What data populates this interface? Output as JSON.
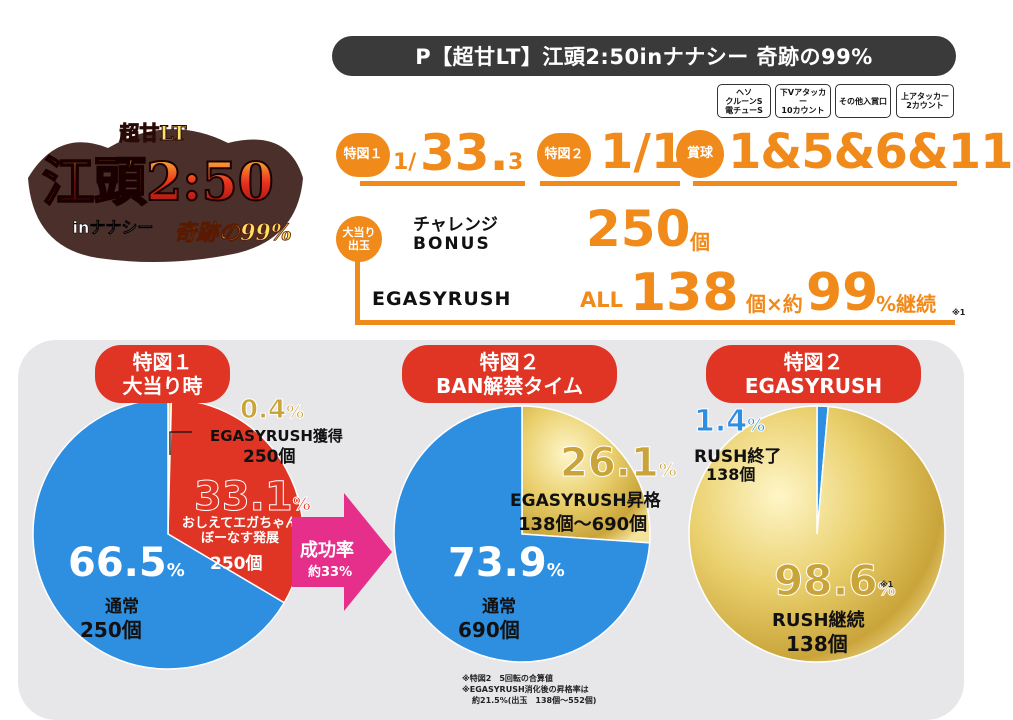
{
  "title": "P【超甘LT】江頭2:50inナナシー 奇跡の99%",
  "logo": {
    "line1": "超甘LT",
    "line2": "江頭2:50",
    "line3": "inナナシー",
    "line4": "奇跡の99%"
  },
  "prize_boxes": [
    "ヘソ\nクルーンS\n電チューS",
    "下Vアタッカー\n10カウント",
    "その他入賞口",
    "上アタッカー\n2カウント"
  ],
  "specs": {
    "tokuzu1_badge": "特図１",
    "tokuzu1_prefix": "1/",
    "tokuzu1_value": "33.",
    "tokuzu1_suffix": "3",
    "tokuzu2_badge": "特図２",
    "tokuzu2_value": "1/1",
    "shokyu_badge": "賞球",
    "shokyu_value": "1&5&6&11",
    "payout_badge": "大当り\n出玉",
    "bonus_label1": "チャレンジ",
    "bonus_label2": "BONUS",
    "bonus_value": "250",
    "bonus_unit": "個",
    "rush_label": "EGASYRUSH",
    "rush_prefix": "ALL",
    "rush_value": "138",
    "rush_mid": "個×約",
    "rush_pct": "99",
    "rush_suffix": "%継続",
    "rush_note": "※1"
  },
  "charts": [
    {
      "header": [
        "特図１",
        "大当り時"
      ],
      "slices": [
        {
          "pct": "0.4",
          "label": "EGASYRUSH獲得",
          "sub": "250個"
        },
        {
          "pct": "33.1",
          "label": "おしえてエガちゃん\nぼーなす発展",
          "sub": "250個"
        },
        {
          "pct": "66.5",
          "label": "通常",
          "sub": "250個"
        }
      ]
    },
    {
      "header": [
        "特図２",
        "BAN解禁タイム"
      ],
      "slices": [
        {
          "pct": "26.1",
          "label": "EGASYRUSH昇格",
          "sub": "138個〜690個"
        },
        {
          "pct": "73.9",
          "label": "通常",
          "sub": "690個"
        }
      ]
    },
    {
      "header": [
        "特図２",
        "EGASYRUSH"
      ],
      "slices": [
        {
          "pct": "1.4",
          "label": "RUSH終了",
          "sub": "138個"
        },
        {
          "pct": "98.6",
          "label": "RUSH継続",
          "sub": "138個",
          "note": "※1"
        }
      ]
    }
  ],
  "arrow": {
    "label": "成功率",
    "sub": "約33%"
  },
  "chart_data": [
    {
      "type": "pie",
      "categories": [
        "EGASYRUSH獲得",
        "おしえてエガちゃんぼーなす発展",
        "通常"
      ],
      "values": [
        0.4,
        33.1,
        66.5
      ]
    },
    {
      "type": "pie",
      "categories": [
        "EGASYRUSH昇格",
        "通常"
      ],
      "values": [
        26.1,
        73.9
      ]
    },
    {
      "type": "pie",
      "categories": [
        "RUSH終了",
        "RUSH継続"
      ],
      "values": [
        1.4,
        98.6
      ]
    }
  ],
  "notes": [
    "※特図2　5回転の合算値",
    "※EGASYRUSH消化後の昇格率は",
    "約21.5%(出玉　138個〜552個)"
  ],
  "colors": {
    "orange": "#f08a1a",
    "red": "#e03424",
    "blue": "#2e8ee0",
    "gold": "#e8cf6a",
    "dark": "#3a3a3a"
  }
}
